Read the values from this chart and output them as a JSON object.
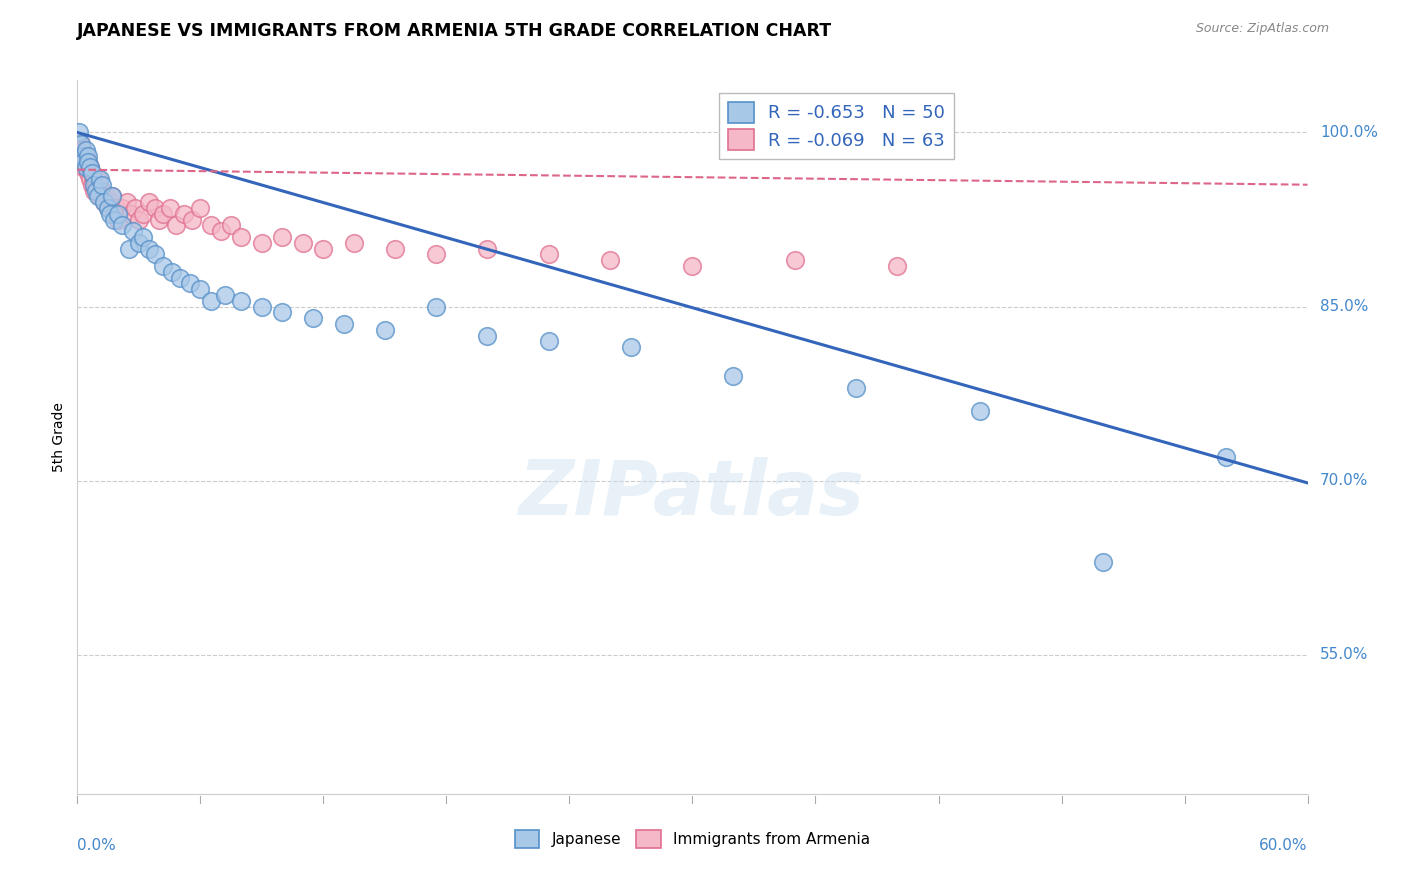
{
  "title": "JAPANESE VS IMMIGRANTS FROM ARMENIA 5TH GRADE CORRELATION CHART",
  "source": "Source: ZipAtlas.com",
  "ylabel": "5th Grade",
  "ylabel_right_ticks": [
    "100.0%",
    "85.0%",
    "70.0%",
    "55.0%"
  ],
  "ylabel_right_values": [
    1.0,
    0.85,
    0.7,
    0.55
  ],
  "xmin": 0.0,
  "xmax": 0.6,
  "ymin": 0.43,
  "ymax": 1.045,
  "R_japanese": -0.653,
  "N_japanese": 50,
  "R_armenia": -0.069,
  "N_armenia": 63,
  "blue_color": "#a8c8e8",
  "blue_edge_color": "#5590c8",
  "blue_line_color": "#3366bb",
  "pink_color": "#f4b8c8",
  "pink_edge_color": "#e07090",
  "pink_line_color": "#dd6688",
  "japanese_x": [
    0.001,
    0.002,
    0.003,
    0.003,
    0.004,
    0.004,
    0.005,
    0.005,
    0.006,
    0.007,
    0.008,
    0.009,
    0.01,
    0.011,
    0.012,
    0.013,
    0.015,
    0.016,
    0.017,
    0.018,
    0.02,
    0.022,
    0.025,
    0.027,
    0.03,
    0.032,
    0.035,
    0.038,
    0.042,
    0.046,
    0.05,
    0.055,
    0.06,
    0.065,
    0.072,
    0.08,
    0.09,
    0.1,
    0.115,
    0.13,
    0.15,
    0.175,
    0.2,
    0.23,
    0.27,
    0.32,
    0.38,
    0.44,
    0.5,
    0.56
  ],
  "japanese_y": [
    1.0,
    0.99,
    0.98,
    0.975,
    0.985,
    0.97,
    0.98,
    0.975,
    0.97,
    0.965,
    0.955,
    0.95,
    0.945,
    0.96,
    0.955,
    0.94,
    0.935,
    0.93,
    0.945,
    0.925,
    0.93,
    0.92,
    0.9,
    0.915,
    0.905,
    0.91,
    0.9,
    0.895,
    0.885,
    0.88,
    0.875,
    0.87,
    0.865,
    0.855,
    0.86,
    0.855,
    0.85,
    0.845,
    0.84,
    0.835,
    0.83,
    0.85,
    0.825,
    0.82,
    0.815,
    0.79,
    0.78,
    0.76,
    0.63,
    0.72
  ],
  "armenia_x": [
    0.001,
    0.001,
    0.002,
    0.002,
    0.002,
    0.003,
    0.003,
    0.003,
    0.004,
    0.004,
    0.005,
    0.005,
    0.006,
    0.006,
    0.007,
    0.007,
    0.008,
    0.008,
    0.009,
    0.01,
    0.01,
    0.011,
    0.012,
    0.013,
    0.014,
    0.015,
    0.016,
    0.017,
    0.018,
    0.019,
    0.02,
    0.022,
    0.024,
    0.026,
    0.028,
    0.03,
    0.032,
    0.035,
    0.038,
    0.04,
    0.042,
    0.045,
    0.048,
    0.052,
    0.056,
    0.06,
    0.065,
    0.07,
    0.075,
    0.08,
    0.09,
    0.1,
    0.11,
    0.12,
    0.135,
    0.155,
    0.175,
    0.2,
    0.23,
    0.26,
    0.3,
    0.35,
    0.4
  ],
  "armenia_y": [
    0.99,
    0.985,
    0.99,
    0.98,
    0.975,
    0.985,
    0.975,
    0.97,
    0.98,
    0.97,
    0.975,
    0.965,
    0.97,
    0.96,
    0.965,
    0.955,
    0.96,
    0.95,
    0.955,
    0.96,
    0.95,
    0.945,
    0.95,
    0.94,
    0.945,
    0.935,
    0.94,
    0.945,
    0.93,
    0.935,
    0.925,
    0.935,
    0.94,
    0.93,
    0.935,
    0.925,
    0.93,
    0.94,
    0.935,
    0.925,
    0.93,
    0.935,
    0.92,
    0.93,
    0.925,
    0.935,
    0.92,
    0.915,
    0.92,
    0.91,
    0.905,
    0.91,
    0.905,
    0.9,
    0.905,
    0.9,
    0.895,
    0.9,
    0.895,
    0.89,
    0.885,
    0.89,
    0.885
  ],
  "blue_trend_x": [
    0.0,
    0.6
  ],
  "blue_trend_y": [
    1.0,
    0.698
  ],
  "pink_trend_x": [
    0.0,
    0.6
  ],
  "pink_trend_y": [
    0.968,
    0.955
  ]
}
